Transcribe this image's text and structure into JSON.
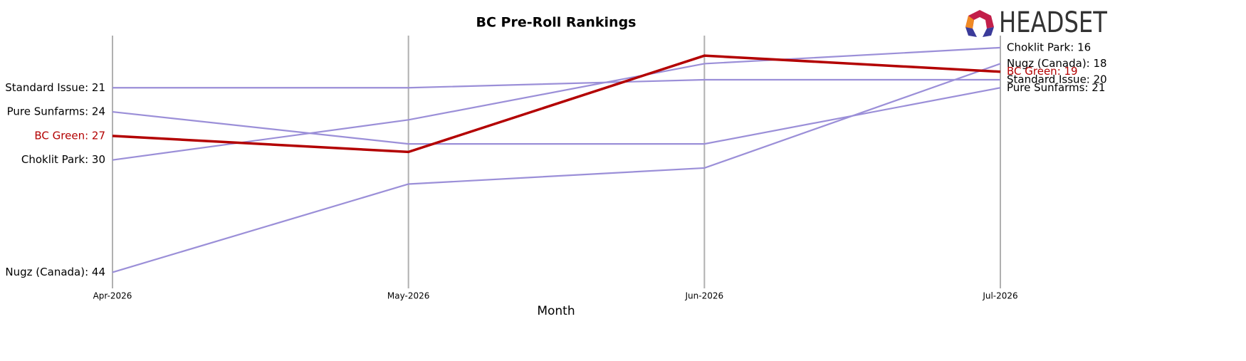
{
  "chart_data": {
    "type": "line",
    "title": "BC Pre-Roll Rankings",
    "x_label": "Month",
    "logo": "HEADSET",
    "categories": [
      "Apr-2026",
      "May-2026",
      "Jun-2026",
      "Jul-2026"
    ],
    "ylim": [
      46,
      14.5
    ],
    "grid": true,
    "series": [
      {
        "name": "Standard Issue",
        "color": "#9b8fd8",
        "label_color": "#000000",
        "width": 2.2,
        "values": [
          21,
          21,
          20,
          20
        ],
        "value_labels": [
          "Standard Issue: 21",
          null,
          null,
          "Standard Issue: 20"
        ]
      },
      {
        "name": "Pure Sunfarms",
        "color": "#9b8fd8",
        "label_color": "#000000",
        "width": 2.2,
        "values": [
          24,
          28,
          28,
          21
        ],
        "value_labels": [
          "Pure Sunfarms: 24",
          null,
          null,
          "Pure Sunfarms: 21"
        ]
      },
      {
        "name": "Choklit Park",
        "color": "#9b8fd8",
        "label_color": "#000000",
        "width": 2.2,
        "values": [
          30,
          25,
          18,
          16
        ],
        "value_labels": [
          "Choklit Park: 30",
          null,
          null,
          "Choklit Park: 16"
        ]
      },
      {
        "name": "Nugz (Canada)",
        "color": "#9b8fd8",
        "label_color": "#000000",
        "width": 2.2,
        "values": [
          44,
          33,
          31,
          18
        ],
        "value_labels": [
          "Nugz (Canada): 44",
          null,
          null,
          "Nugz (Canada): 18"
        ]
      },
      {
        "name": "BC Green",
        "color": "#b30000",
        "label_color": "#b30000",
        "width": 3.5,
        "values": [
          27,
          29,
          17,
          19
        ],
        "value_labels": [
          "BC Green: 27",
          null,
          null,
          "BC Green: 19"
        ]
      }
    ]
  }
}
